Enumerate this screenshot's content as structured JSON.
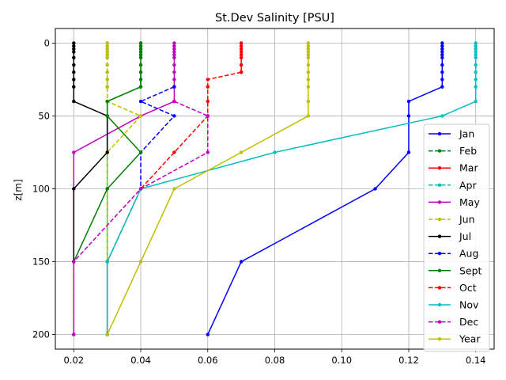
{
  "chart_data": {
    "type": "line",
    "title": "St.Dev Salinity [PSU]",
    "xlabel": "",
    "ylabel": "z[m]",
    "xlim": [
      0.0145,
      0.1455
    ],
    "ylim": [
      210,
      -10
    ],
    "y_inverted": true,
    "grid": true,
    "legend_position": "right",
    "xticks": [
      0.02,
      0.04,
      0.06,
      0.08,
      0.1,
      0.12,
      0.14
    ],
    "xtick_labels": [
      "0.02",
      "0.04",
      "0.06",
      "0.08",
      "0.10",
      "0.12",
      "0.14"
    ],
    "yticks": [
      0,
      50,
      100,
      150,
      200
    ],
    "ytick_labels": [
      "0",
      "50",
      "100",
      "150",
      "200"
    ],
    "series": [
      {
        "name": "Jan",
        "color": "#0000ff",
        "style": "solid",
        "points": [
          [
            0.13,
            0
          ],
          [
            0.13,
            2
          ],
          [
            0.13,
            4
          ],
          [
            0.13,
            6
          ],
          [
            0.13,
            8
          ],
          [
            0.13,
            10
          ],
          [
            0.13,
            15
          ],
          [
            0.13,
            20
          ],
          [
            0.13,
            25
          ],
          [
            0.13,
            30
          ],
          [
            0.12,
            40
          ],
          [
            0.12,
            50
          ],
          [
            0.12,
            75
          ],
          [
            0.11,
            100
          ],
          [
            0.07,
            150
          ],
          [
            0.06,
            200
          ]
        ]
      },
      {
        "name": "Feb",
        "color": "#008000",
        "style": "dashed",
        "points": [
          [
            0.04,
            0
          ],
          [
            0.04,
            2
          ],
          [
            0.04,
            4
          ],
          [
            0.04,
            6
          ],
          [
            0.04,
            8
          ],
          [
            0.04,
            10
          ],
          [
            0.04,
            15
          ],
          [
            0.04,
            20
          ],
          [
            0.04,
            25
          ],
          [
            0.04,
            30
          ],
          [
            0.03,
            40
          ],
          [
            0.03,
            50
          ],
          [
            0.03,
            75
          ],
          [
            0.03,
            100
          ],
          [
            0.03,
            150
          ],
          [
            0.03,
            200
          ]
        ]
      },
      {
        "name": "Mar",
        "color": "#ff0000",
        "style": "solid",
        "points": [
          [
            0.07,
            0
          ],
          [
            0.07,
            2
          ],
          [
            0.07,
            4
          ],
          [
            0.07,
            6
          ],
          [
            0.07,
            8
          ],
          [
            0.07,
            10
          ],
          [
            0.07,
            15
          ],
          [
            0.07,
            20
          ]
        ]
      },
      {
        "name": "Apr",
        "color": "#00bfbf",
        "style": "dashed",
        "points": [
          [
            0.03,
            0
          ],
          [
            0.03,
            2
          ],
          [
            0.03,
            4
          ],
          [
            0.03,
            6
          ],
          [
            0.03,
            8
          ],
          [
            0.03,
            10
          ],
          [
            0.03,
            15
          ],
          [
            0.03,
            20
          ],
          [
            0.03,
            25
          ],
          [
            0.03,
            30
          ],
          [
            0.03,
            40
          ],
          [
            0.03,
            50
          ],
          [
            0.03,
            75
          ],
          [
            0.03,
            100
          ],
          [
            0.03,
            150
          ],
          [
            0.03,
            200
          ]
        ]
      },
      {
        "name": "May",
        "color": "#bf00bf",
        "style": "solid",
        "points": [
          [
            0.05,
            0
          ],
          [
            0.05,
            2
          ],
          [
            0.05,
            4
          ],
          [
            0.05,
            6
          ],
          [
            0.05,
            8
          ],
          [
            0.05,
            10
          ],
          [
            0.05,
            15
          ],
          [
            0.05,
            20
          ],
          [
            0.05,
            25
          ],
          [
            0.05,
            30
          ],
          [
            0.05,
            40
          ],
          [
            0.04,
            50
          ],
          [
            0.02,
            75
          ],
          [
            0.02,
            100
          ],
          [
            0.02,
            150
          ],
          [
            0.02,
            200
          ]
        ]
      },
      {
        "name": "Jun",
        "color": "#bfbf00",
        "style": "dashed",
        "points": [
          [
            0.03,
            0
          ],
          [
            0.03,
            2
          ],
          [
            0.03,
            4
          ],
          [
            0.03,
            6
          ],
          [
            0.03,
            8
          ],
          [
            0.03,
            10
          ],
          [
            0.03,
            15
          ],
          [
            0.03,
            20
          ],
          [
            0.03,
            25
          ],
          [
            0.03,
            30
          ],
          [
            0.03,
            40
          ],
          [
            0.04,
            50
          ],
          [
            0.03,
            75
          ],
          [
            0.03,
            100
          ],
          [
            0.03,
            150
          ],
          [
            0.03,
            200
          ]
        ]
      },
      {
        "name": "Jul",
        "color": "#000000",
        "style": "solid",
        "points": [
          [
            0.02,
            0
          ],
          [
            0.02,
            2
          ],
          [
            0.02,
            4
          ],
          [
            0.02,
            6
          ],
          [
            0.02,
            10
          ],
          [
            0.02,
            15
          ],
          [
            0.02,
            20
          ],
          [
            0.02,
            25
          ],
          [
            0.02,
            30
          ],
          [
            0.02,
            40
          ],
          [
            0.03,
            50
          ],
          [
            0.03,
            75
          ],
          [
            0.02,
            100
          ],
          [
            0.02,
            150
          ]
        ]
      },
      {
        "name": "Aug",
        "color": "#0000ff",
        "style": "dashed",
        "points": [
          [
            0.05,
            30
          ],
          [
            0.04,
            40
          ],
          [
            0.05,
            50
          ],
          [
            0.04,
            75
          ],
          [
            0.04,
            100
          ]
        ]
      },
      {
        "name": "Sept",
        "color": "#008000",
        "style": "solid",
        "points": [
          [
            0.04,
            0
          ],
          [
            0.04,
            2
          ],
          [
            0.04,
            4
          ],
          [
            0.04,
            6
          ],
          [
            0.04,
            8
          ],
          [
            0.04,
            10
          ],
          [
            0.04,
            15
          ],
          [
            0.04,
            20
          ],
          [
            0.04,
            25
          ],
          [
            0.04,
            30
          ],
          [
            0.03,
            40
          ],
          [
            0.03,
            50
          ],
          [
            0.04,
            75
          ],
          [
            0.03,
            100
          ],
          [
            0.02,
            150
          ]
        ]
      },
      {
        "name": "Oct",
        "color": "#ff0000",
        "style": "dashed",
        "points": [
          [
            0.07,
            20
          ],
          [
            0.06,
            25
          ],
          [
            0.06,
            30
          ],
          [
            0.06,
            40
          ],
          [
            0.06,
            50
          ],
          [
            0.05,
            75
          ],
          [
            0.04,
            100
          ],
          [
            0.03,
            150
          ],
          [
            0.03,
            200
          ]
        ]
      },
      {
        "name": "Nov",
        "color": "#00bfbf",
        "style": "solid",
        "points": [
          [
            0.14,
            0
          ],
          [
            0.14,
            2
          ],
          [
            0.14,
            4
          ],
          [
            0.14,
            6
          ],
          [
            0.14,
            8
          ],
          [
            0.14,
            10
          ],
          [
            0.14,
            15
          ],
          [
            0.14,
            20
          ],
          [
            0.14,
            25
          ],
          [
            0.14,
            30
          ],
          [
            0.14,
            40
          ],
          [
            0.13,
            50
          ],
          [
            0.08,
            75
          ],
          [
            0.04,
            100
          ],
          [
            0.03,
            150
          ],
          [
            0.03,
            200
          ]
        ]
      },
      {
        "name": "Dec",
        "color": "#bf00bf",
        "style": "dashed",
        "points": [
          [
            0.05,
            40
          ],
          [
            0.06,
            50
          ],
          [
            0.06,
            75
          ],
          [
            0.04,
            100
          ],
          [
            0.02,
            150
          ],
          [
            0.02,
            200
          ]
        ]
      },
      {
        "name": "Year",
        "color": "#bfbf00",
        "style": "solid",
        "points": [
          [
            0.09,
            0
          ],
          [
            0.09,
            2
          ],
          [
            0.09,
            4
          ],
          [
            0.09,
            6
          ],
          [
            0.09,
            8
          ],
          [
            0.09,
            10
          ],
          [
            0.09,
            15
          ],
          [
            0.09,
            20
          ],
          [
            0.09,
            25
          ],
          [
            0.09,
            30
          ],
          [
            0.09,
            40
          ],
          [
            0.09,
            50
          ],
          [
            0.07,
            75
          ],
          [
            0.05,
            100
          ],
          [
            0.04,
            150
          ],
          [
            0.03,
            200
          ]
        ]
      }
    ]
  }
}
